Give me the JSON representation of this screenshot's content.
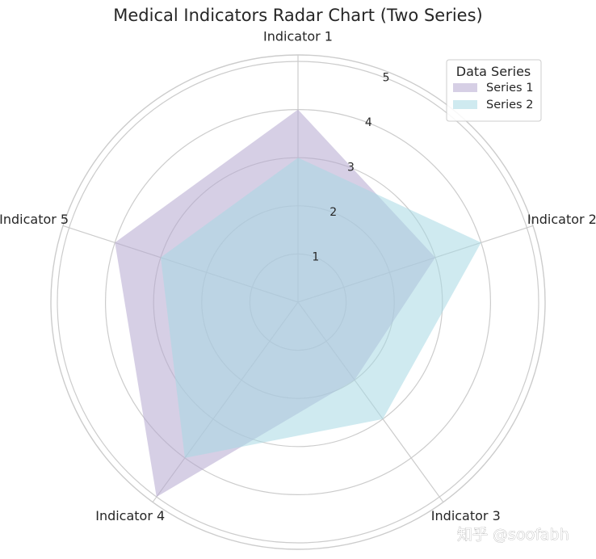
{
  "chart_data": {
    "type": "radar",
    "title": "Medical Indicators Radar Chart (Two Series)",
    "categories": [
      "Indicator 1",
      "Indicator 2",
      "Indicator 3",
      "Indicator 4",
      "Indicator 5"
    ],
    "r_ticks": [
      1,
      2,
      3,
      4,
      5
    ],
    "r_tick_labels": [
      "1",
      "2",
      "3",
      "4",
      "5"
    ],
    "r_range": [
      0,
      5
    ],
    "grid": true,
    "series": [
      {
        "name": "Series 1",
        "values": [
          4,
          3,
          2,
          5,
          4
        ],
        "color": "#b5a8cf",
        "opacity": 0.55
      },
      {
        "name": "Series 2",
        "values": [
          3,
          4,
          3,
          4,
          3
        ],
        "color": "#a8d8e3",
        "opacity": 0.55
      }
    ],
    "legend": {
      "title": "Data Series",
      "position": "top-right"
    }
  },
  "watermark": "知乎 @soofabh"
}
